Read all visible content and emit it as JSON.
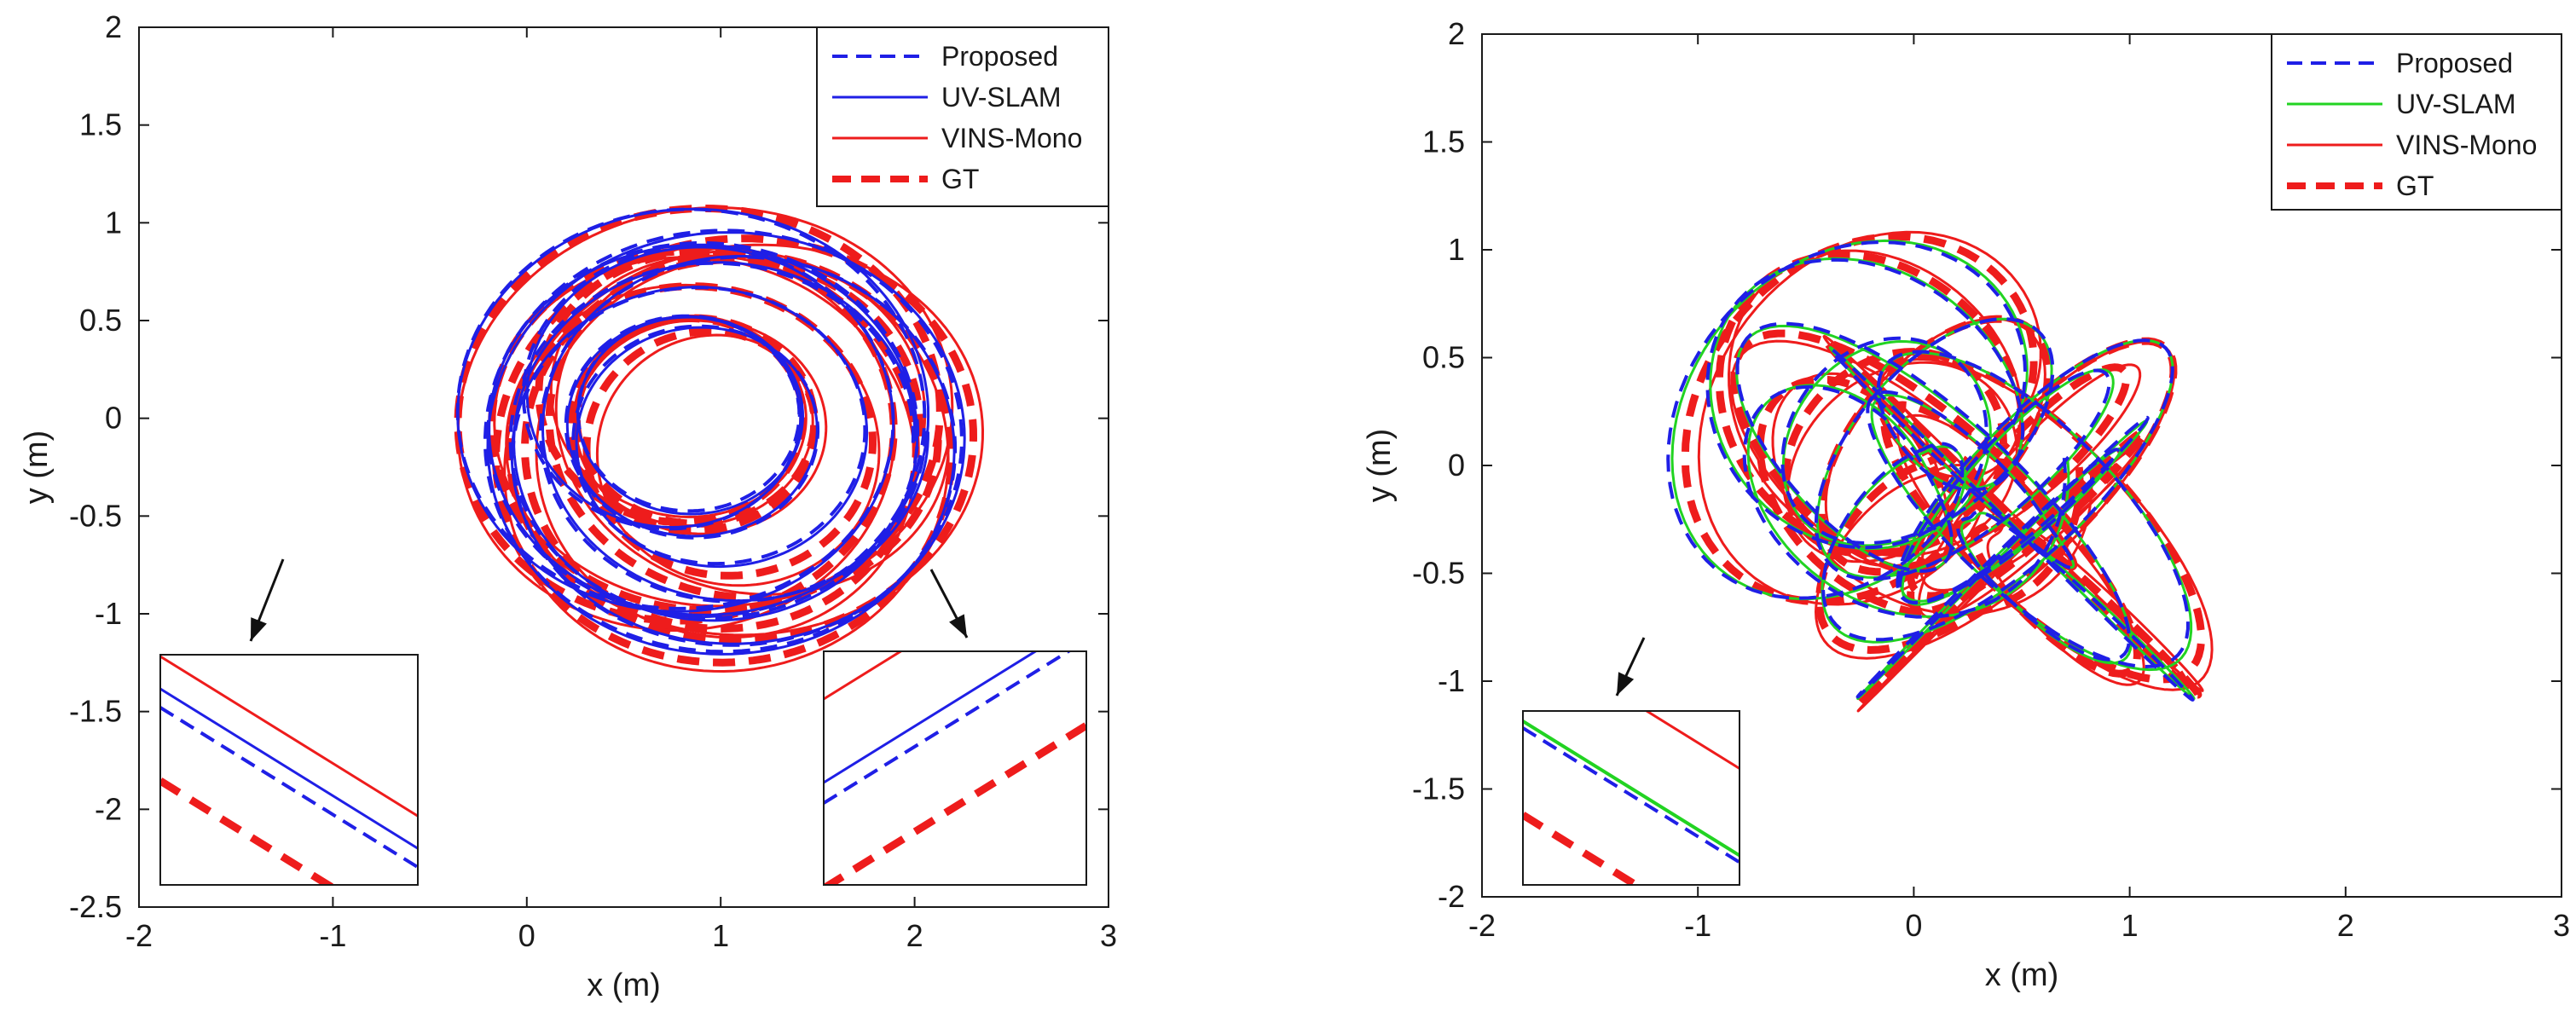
{
  "colors": {
    "proposed": "#1f1fe6",
    "uv_slam_left": "#1f1fe6",
    "uv_slam_right": "#22d322",
    "vins_mono": "#ee1c1c",
    "gt": "#ee1c1c",
    "axes": "#1a1a1a",
    "annotation_arrow": "#111111"
  },
  "chart_data": [
    {
      "type": "line",
      "id": "left",
      "title": "",
      "xlabel": "x (m)",
      "ylabel": "y (m)",
      "xlim": [
        -2,
        3
      ],
      "ylim": [
        -2.5,
        2
      ],
      "xticks": [
        "-2",
        "-1",
        "0",
        "1",
        "2",
        "3"
      ],
      "yticks": [
        "2",
        "1.5",
        "1",
        "0.5",
        "0",
        "-0.5",
        "-1",
        "-1.5",
        "-2",
        "-2.5"
      ],
      "grid": false,
      "legend_position": "top-right",
      "legend": [
        "Proposed",
        "UV-SLAM",
        "VINS-Mono",
        "GT"
      ],
      "series": [
        {
          "name": "Proposed",
          "style": "dashed",
          "pattern": "loops",
          "center": [
            0.95,
            -0.05
          ],
          "radius": [
            1.2,
            1.05
          ]
        },
        {
          "name": "UV-SLAM",
          "style": "solid",
          "pattern": "loops",
          "center": [
            0.95,
            -0.05
          ],
          "radius": [
            1.2,
            1.05
          ]
        },
        {
          "name": "VINS-Mono",
          "style": "solid",
          "pattern": "loops",
          "center": [
            0.95,
            -0.05
          ],
          "radius": [
            1.2,
            1.05
          ]
        },
        {
          "name": "GT",
          "style": "thick-dashed",
          "pattern": "loops",
          "center": [
            0.95,
            -0.05
          ],
          "radius": [
            1.2,
            1.05
          ]
        }
      ],
      "insets": [
        "lower-left",
        "lower-right"
      ]
    },
    {
      "type": "line",
      "id": "right",
      "title": "",
      "xlabel": "x (m)",
      "ylabel": "y (m)",
      "xlim": [
        -2,
        3
      ],
      "ylim": [
        -2,
        2
      ],
      "xticks": [
        "-2",
        "-1",
        "0",
        "1",
        "2",
        "3"
      ],
      "yticks": [
        "2",
        "1.5",
        "1",
        "0.5",
        "0",
        "-0.5",
        "-1",
        "-1.5",
        "-2"
      ],
      "grid": false,
      "legend_position": "top-right",
      "legend": [
        "Proposed",
        "UV-SLAM",
        "VINS-Mono",
        "GT"
      ],
      "series": [
        {
          "name": "Proposed",
          "style": "dashed",
          "pattern": "rosette",
          "center": [
            0.2,
            -0.05
          ],
          "radius": [
            1.05,
            0.95
          ]
        },
        {
          "name": "UV-SLAM",
          "style": "solid",
          "pattern": "rosette",
          "center": [
            0.2,
            -0.05
          ],
          "radius": [
            1.05,
            0.95
          ]
        },
        {
          "name": "VINS-Mono",
          "style": "solid",
          "pattern": "rosette",
          "center": [
            0.2,
            -0.05
          ],
          "radius": [
            1.05,
            0.95
          ]
        },
        {
          "name": "GT",
          "style": "thick-dashed",
          "pattern": "rosette",
          "center": [
            0.2,
            -0.05
          ],
          "radius": [
            1.05,
            0.95
          ]
        }
      ],
      "insets": [
        "lower-left"
      ]
    }
  ]
}
